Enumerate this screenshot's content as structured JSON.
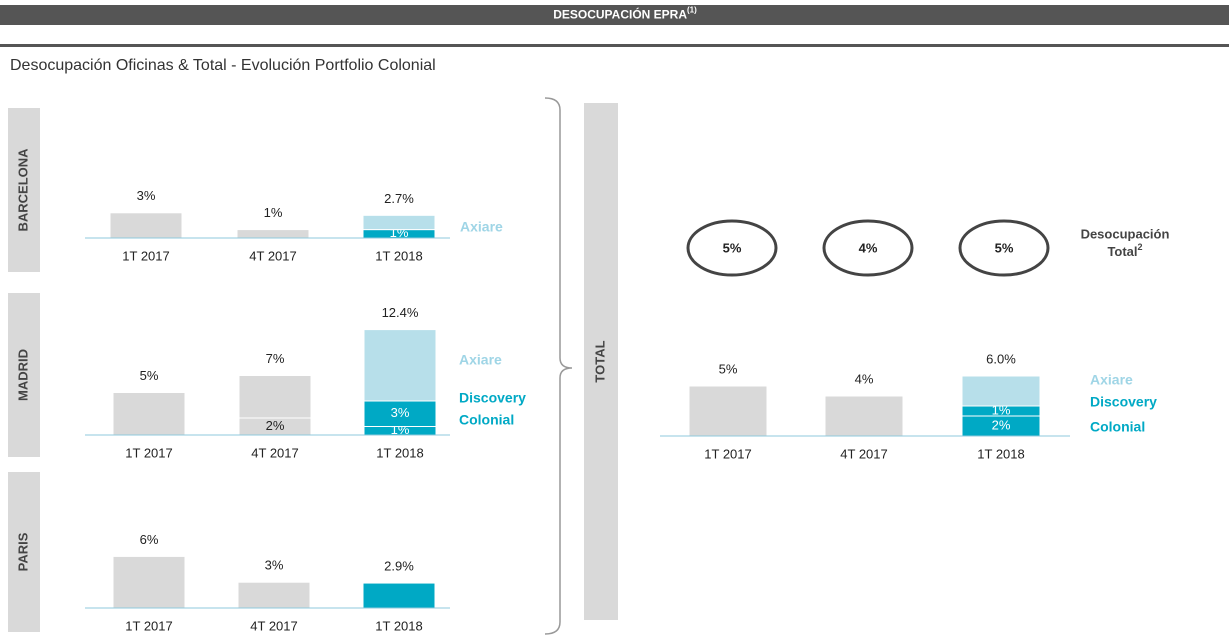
{
  "header": {
    "title": "DESOCUPACIÓN EPRA",
    "sup": "(1)"
  },
  "subtitle": "Desocupación Oficinas & Total - Evolución Portfolio Colonial",
  "chart_data": [
    {
      "type": "stacked-bar",
      "region": "BARCELONA",
      "categories": [
        "1T 2017",
        "4T 2017",
        "1T 2018"
      ],
      "bars": [
        {
          "segments": [
            {
              "value": 3,
              "value_label": "3%",
              "color": "#d9d9d9"
            }
          ]
        },
        {
          "segments": [
            {
              "value": 1,
              "value_label": "1%",
              "color": "#d9d9d9"
            }
          ]
        },
        {
          "label": "2.7%",
          "segments": [
            {
              "value": 1,
              "value_label": "1%",
              "color": "#00a9c5"
            },
            {
              "value": 1.7,
              "color": "#b7dfea"
            }
          ]
        }
      ],
      "legend": [
        {
          "text": "Axiare",
          "color": "#9fd5e6"
        }
      ]
    },
    {
      "type": "stacked-bar",
      "region": "MADRID",
      "categories": [
        "1T 2017",
        "4T 2017",
        "1T 2018"
      ],
      "bars": [
        {
          "segments": [
            {
              "value": 5,
              "value_label": "5%",
              "color": "#d9d9d9"
            }
          ]
        },
        {
          "label": "7%",
          "segments": [
            {
              "value": 2,
              "value_label": "2%",
              "color": "#d9d9d9"
            },
            {
              "value": 5,
              "color": "#d9d9d9"
            }
          ]
        },
        {
          "label": "12.4%",
          "segments": [
            {
              "value": 1,
              "value_label": "1%",
              "color": "#00a9c5"
            },
            {
              "value": 3,
              "value_label": "3%",
              "color": "#00a9c5"
            },
            {
              "value": 8.4,
              "color": "#b7dfea"
            }
          ]
        }
      ],
      "legend": [
        {
          "text": "Axiare",
          "color": "#9fd5e6"
        },
        {
          "text": "Discovery",
          "color": "#00a9c5"
        },
        {
          "text": "Colonial",
          "color": "#00a9c5"
        }
      ]
    },
    {
      "type": "stacked-bar",
      "region": "PARIS",
      "categories": [
        "1T 2017",
        "4T 2017",
        "1T 2018"
      ],
      "bars": [
        {
          "segments": [
            {
              "value": 6,
              "value_label": "6%",
              "color": "#d9d9d9"
            }
          ]
        },
        {
          "segments": [
            {
              "value": 3,
              "value_label": "3%",
              "color": "#d9d9d9"
            }
          ]
        },
        {
          "segments": [
            {
              "value": 2.9,
              "value_label": "2.9%",
              "color": "#00a9c5"
            }
          ]
        }
      ],
      "legend": []
    },
    {
      "type": "stacked-bar",
      "region": "TOTAL",
      "categories": [
        "1T 2017",
        "4T 2017",
        "1T 2018"
      ],
      "bars": [
        {
          "segments": [
            {
              "value": 5,
              "value_label": "5%",
              "color": "#d9d9d9"
            }
          ]
        },
        {
          "segments": [
            {
              "value": 4,
              "value_label": "4%",
              "color": "#d9d9d9"
            }
          ]
        },
        {
          "label": "6.0%",
          "segments": [
            {
              "value": 2,
              "value_label": "2%",
              "color": "#00a9c5"
            },
            {
              "value": 1,
              "value_label": "1%",
              "color": "#00a9c5"
            },
            {
              "value": 3,
              "color": "#b7dfea"
            }
          ]
        }
      ],
      "legend": [
        {
          "text": "Axiare",
          "color": "#9fd5e6"
        },
        {
          "text": "Discovery",
          "color": "#00a9c5"
        },
        {
          "text": "Colonial",
          "color": "#00a9c5"
        }
      ],
      "circles": {
        "values": [
          5,
          4,
          5
        ],
        "value_labels": [
          "5%",
          "4%",
          "5%"
        ],
        "title": [
          "Desocupación",
          "Total"
        ],
        "title_sup": "2"
      }
    }
  ]
}
